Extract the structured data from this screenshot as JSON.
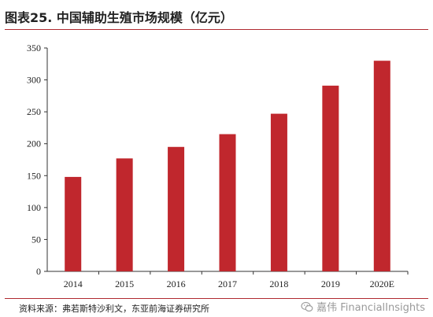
{
  "header": {
    "title": "图表25. 中国辅助生殖市场规模（亿元）"
  },
  "footer": {
    "source": "资料来源：弗若斯特沙利文，东亚前海证券研究所",
    "watermark": "嘉伟 FinancialInsights",
    "watermark_icon": "wechat-icon"
  },
  "colors": {
    "bar": "#c0272d",
    "rule": "#b02a30"
  },
  "chart_data": {
    "type": "bar",
    "categories": [
      "2014",
      "2015",
      "2016",
      "2017",
      "2018",
      "2019",
      "2020E"
    ],
    "values": [
      148,
      177,
      195,
      215,
      247,
      291,
      330
    ],
    "title": "中国辅助生殖市场规模（亿元）",
    "xlabel": "",
    "ylabel": "",
    "ylim": [
      0,
      350
    ],
    "yticks": [
      0,
      50,
      100,
      150,
      200,
      250,
      300,
      350
    ],
    "grid": false,
    "legend": "none"
  }
}
